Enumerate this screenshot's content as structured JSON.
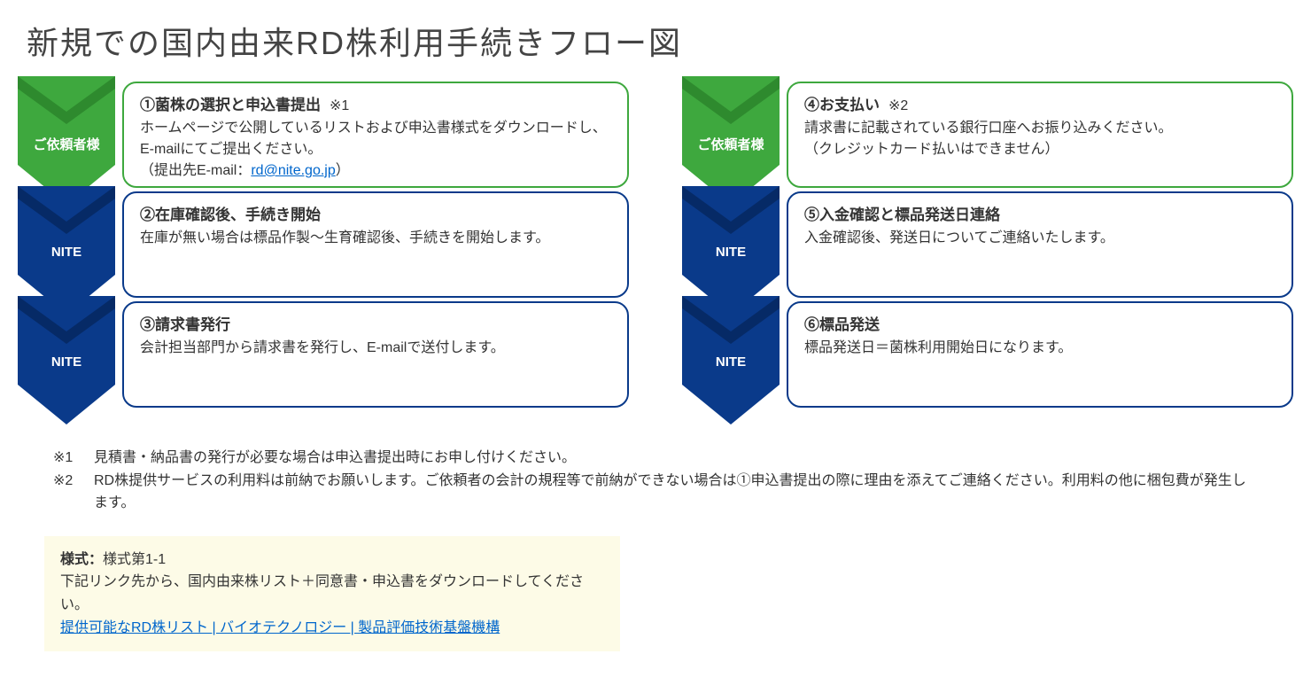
{
  "title": "新規での国内由来RD株利用手続きフロー図",
  "colors": {
    "requester": "#3ea83e",
    "requester_dark": "#2e8a2e",
    "nite": "#0a3a8a",
    "nite_dark": "#062a66",
    "link": "#0066cc",
    "download_bg": "#fdfbe7"
  },
  "left_steps": [
    {
      "actor": "ご依頼者様",
      "actor_type": "requester",
      "title": "①菌株の選択と申込書提出",
      "annot": "※1",
      "desc_pre": "ホームページで公開しているリストおよび申込書様式をダウンロードし、E-mailにてご提出ください。\n（提出先E-mail：",
      "link_text": "rd@nite.go.jp",
      "desc_post": "）"
    },
    {
      "actor": "NITE",
      "actor_type": "nite",
      "title": "②在庫確認後、手続き開始",
      "annot": "",
      "desc_pre": "在庫が無い場合は標品作製～生育確認後、手続きを開始します。",
      "link_text": "",
      "desc_post": ""
    },
    {
      "actor": "NITE",
      "actor_type": "nite",
      "title": "③請求書発行",
      "annot": "",
      "desc_pre": "会計担当部門から請求書を発行し、E-mailで送付します。",
      "link_text": "",
      "desc_post": ""
    }
  ],
  "right_steps": [
    {
      "actor": "ご依頼者様",
      "actor_type": "requester",
      "title": "④お支払い",
      "annot": "※2",
      "desc_pre": "請求書に記載されている銀行口座へお振り込みください。\n（クレジットカード払いはできません）",
      "link_text": "",
      "desc_post": ""
    },
    {
      "actor": "NITE",
      "actor_type": "nite",
      "title": "⑤入金確認と標品発送日連絡",
      "annot": "",
      "desc_pre": "入金確認後、発送日についてご連絡いたします。",
      "link_text": "",
      "desc_post": ""
    },
    {
      "actor": "NITE",
      "actor_type": "nite",
      "title": "⑥標品発送",
      "annot": "",
      "desc_pre": "標品発送日＝菌株利用開始日になります。",
      "link_text": "",
      "desc_post": ""
    }
  ],
  "notes": [
    {
      "label": "※1",
      "text": "見積書・納品書の発行が必要な場合は申込書提出時にお申し付けください。"
    },
    {
      "label": "※2",
      "text": "RD株提供サービスの利用料は前納でお願いします。ご依頼者の会計の規程等で前納ができない場合は①申込書提出の際に理由を添えてご連絡ください。利用料の他に梱包費が発生します。"
    }
  ],
  "download": {
    "form_label": "様式：",
    "form_name": "様式第1-1",
    "instruction": "下記リンク先から、国内由来株リスト＋同意書・申込書をダウンロードしてください。",
    "link_text": "提供可能なRD株リスト | バイオテクノロジー | 製品評価技術基盤機構"
  }
}
